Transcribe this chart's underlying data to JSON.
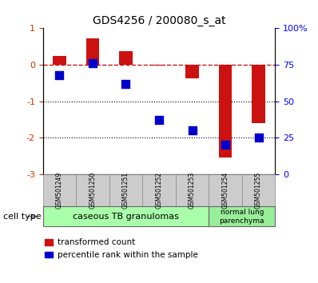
{
  "title": "GDS4256 / 200080_s_at",
  "samples": [
    "GSM501249",
    "GSM501250",
    "GSM501251",
    "GSM501252",
    "GSM501253",
    "GSM501254",
    "GSM501255"
  ],
  "transformed_count": [
    0.25,
    0.72,
    0.38,
    -0.03,
    -0.38,
    -2.55,
    -1.6
  ],
  "percentile_rank": [
    68,
    76,
    62,
    37,
    30,
    20,
    25
  ],
  "ylim_left": [
    -3,
    1
  ],
  "ylim_right": [
    0,
    100
  ],
  "yticks_left": [
    -3,
    -2,
    -1,
    0,
    1
  ],
  "yticks_right": [
    0,
    25,
    50,
    75,
    100
  ],
  "yticklabels_right": [
    "0",
    "25",
    "50",
    "75",
    "100%"
  ],
  "dotted_lines": [
    -1,
    -2
  ],
  "bar_color": "#cc1111",
  "dot_color": "#0000cc",
  "group1_label": "caseous TB granulomas",
  "group2_label": "normal lung\nparenchyma",
  "group1_color": "#aaffaa",
  "group2_color": "#99ee99",
  "cell_type_label": "cell type",
  "legend1_label": "transformed count",
  "legend2_label": "percentile rank within the sample",
  "bar_width": 0.4,
  "dot_size": 50,
  "n_group1": 5,
  "n_group2": 2
}
